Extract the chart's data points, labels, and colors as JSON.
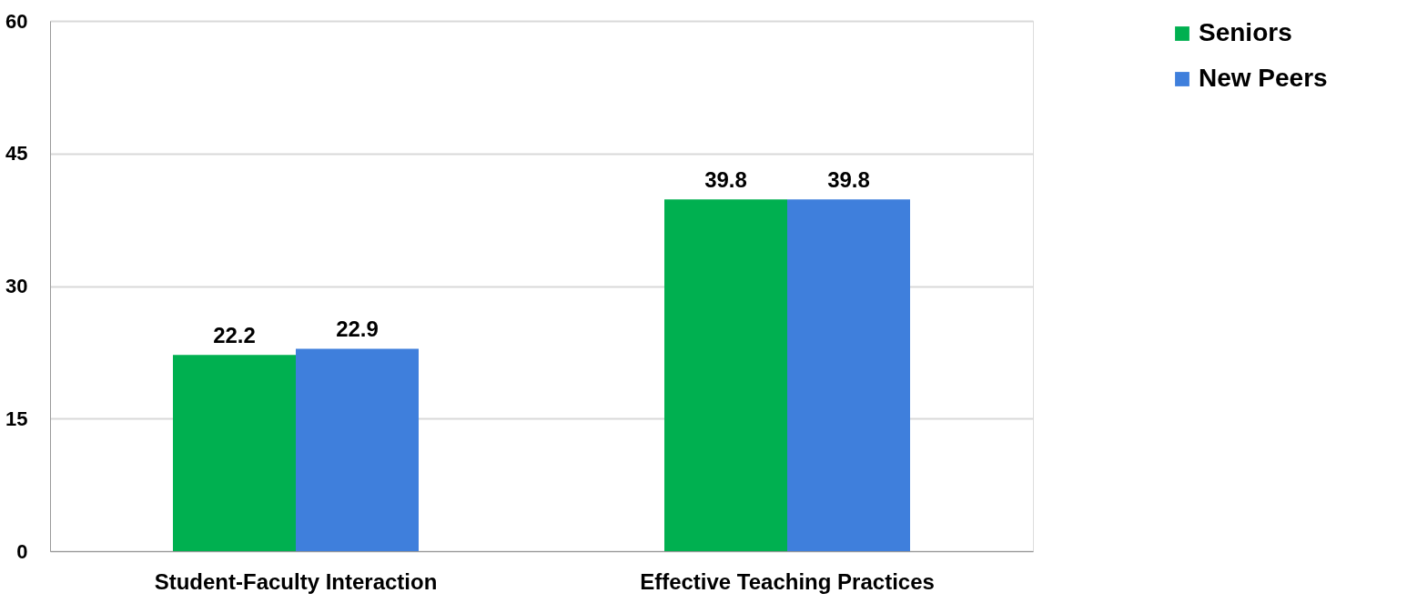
{
  "chart_data": {
    "type": "bar",
    "categories": [
      "Student-Faculty Interaction",
      "Effective Teaching Practices"
    ],
    "series": [
      {
        "name": "Seniors",
        "color": "#00b050",
        "values": [
          22.2,
          39.8
        ]
      },
      {
        "name": "New Peers",
        "color": "#3f7fdc",
        "values": [
          22.9,
          39.8
        ]
      }
    ],
    "ylim": [
      0,
      60
    ],
    "yticks": [
      0,
      15,
      30,
      45,
      60
    ],
    "grid": "y",
    "legend": "right",
    "data_labels": true
  }
}
